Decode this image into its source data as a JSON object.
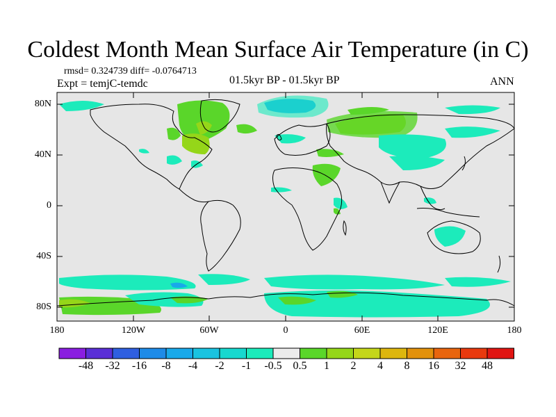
{
  "title": "Coldest Month Mean Surface Air Temperature (in C)",
  "stats_line": "rmsd= 0.324739 diff= -0.0764713",
  "experiment_line": "Expt = temjC-temdc",
  "period_line": "01.5kyr BP - 01.5kyr BP",
  "season": "ANN",
  "map": {
    "lat_labels": [
      "80N",
      "40N",
      "0",
      "40S",
      "80S"
    ],
    "lon_labels": [
      "180",
      "120W",
      "60W",
      "0",
      "60E",
      "120E",
      "180"
    ],
    "background_color": "#e6e6e6"
  },
  "colorbar": {
    "labels": [
      "-48",
      "-32",
      "-16",
      "-8",
      "-4",
      "-2",
      "-1",
      "-0.5",
      "0.5",
      "1",
      "2",
      "4",
      "8",
      "16",
      "32",
      "48"
    ],
    "colors": [
      "#8a1ee0",
      "#5a2fd6",
      "#2f5fe0",
      "#1e8be8",
      "#19a9ea",
      "#1ac3e0",
      "#17d8cf",
      "#1cebbb",
      "#ececec",
      "#5ad62a",
      "#95d619",
      "#c4d61a",
      "#ddb60e",
      "#e2910c",
      "#e8650e",
      "#e8390e",
      "#e01512"
    ]
  }
}
